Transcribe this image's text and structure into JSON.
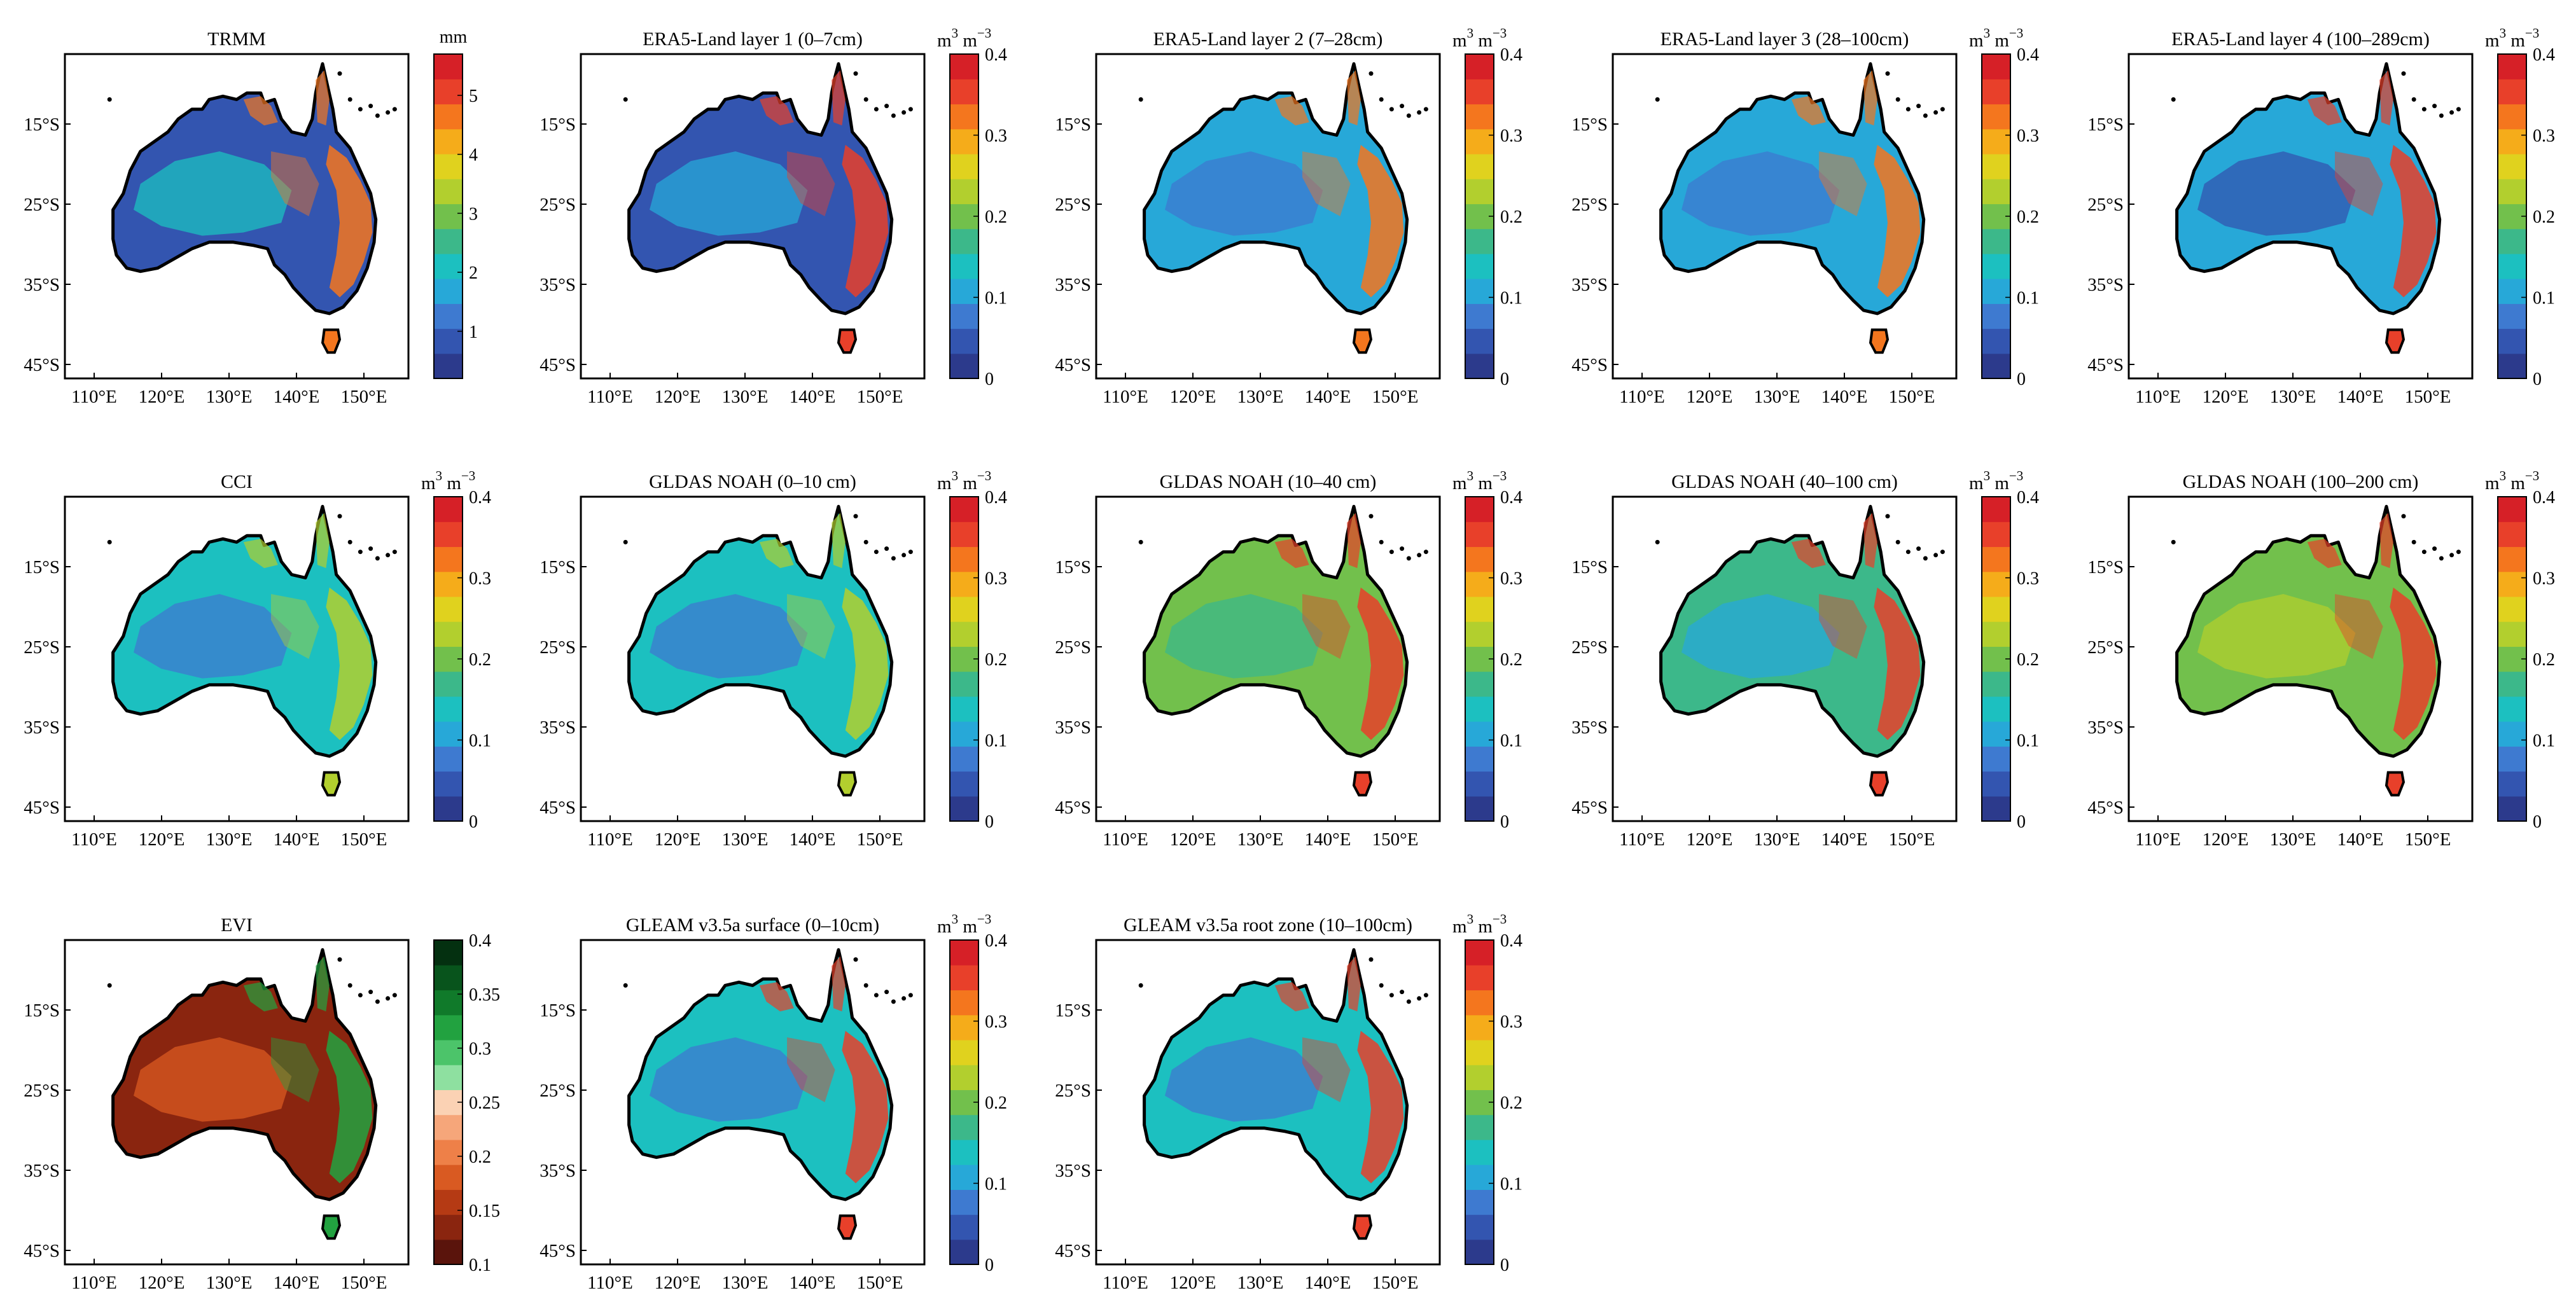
{
  "figure": {
    "x_ticks": [
      "110°E",
      "120°E",
      "130°E",
      "140°E",
      "150°E"
    ],
    "y_ticks": [
      "15°S",
      "25°S",
      "35°S",
      "45°S"
    ],
    "colorscales": {
      "rainfall": {
        "unit": "mm",
        "tick_labels": [
          "1",
          "2",
          "3",
          "4",
          "5"
        ],
        "colors": [
          "#2c3a8c",
          "#3355b0",
          "#3e7ad0",
          "#27a8d8",
          "#1cc0c0",
          "#3cb88a",
          "#72c04c",
          "#b2cf2e",
          "#e0d21e",
          "#f5ac1a",
          "#f4761e",
          "#e8402a",
          "#d62027"
        ]
      },
      "soil_moisture": {
        "unit_base": "m",
        "unit_exp1": "3",
        "unit_mid": " m",
        "unit_exp2": "−3",
        "tick_labels": [
          "0",
          "0.1",
          "0.2",
          "0.3",
          "0.4"
        ],
        "colors": [
          "#2c3a8c",
          "#3355b0",
          "#3e7ad0",
          "#27a8d8",
          "#1cc0c0",
          "#3cb88a",
          "#72c04c",
          "#b2cf2e",
          "#e0d21e",
          "#f5ac1a",
          "#f4761e",
          "#e8402a",
          "#d62027"
        ]
      },
      "vegetation": {
        "tick_labels": [
          "0.1",
          "0.15",
          "0.2",
          "0.25",
          "0.3",
          "0.35",
          "0.4"
        ],
        "colors": [
          "#5a140c",
          "#8a250f",
          "#b53a14",
          "#d95a22",
          "#ee8048",
          "#f6a67a",
          "#fbd2b4",
          "#8ee0a0",
          "#4cc46a",
          "#22a240",
          "#107a2a",
          "#08541c",
          "#043010"
        ]
      }
    },
    "panels": [
      {
        "title": "TRMM",
        "scale": "rainfall",
        "land": "#3355b0",
        "accent": "#1cc0c0",
        "hot": "#f4761e"
      },
      {
        "title": "ERA5-Land layer 1 (0–7cm)",
        "scale": "soil_moisture",
        "land": "#3355b0",
        "accent": "#27a8d8",
        "hot": "#e8402a"
      },
      {
        "title": "ERA5-Land layer 2 (7–28cm)",
        "scale": "soil_moisture",
        "land": "#27a8d8",
        "accent": "#3e7ad0",
        "hot": "#f4761e"
      },
      {
        "title": "ERA5-Land layer 3 (28–100cm)",
        "scale": "soil_moisture",
        "land": "#27a8d8",
        "accent": "#3e7ad0",
        "hot": "#f4761e"
      },
      {
        "title": "ERA5-Land layer 4 (100–289cm)",
        "scale": "soil_moisture",
        "land": "#27a8d8",
        "accent": "#3355b0",
        "hot": "#e8402a"
      },
      {
        "title": "CCI",
        "scale": "soil_moisture",
        "land": "#1cc0c0",
        "accent": "#3e7ad0",
        "hot": "#b2cf2e"
      },
      {
        "title": "GLDAS NOAH (0–10 cm)",
        "scale": "soil_moisture",
        "land": "#1cc0c0",
        "accent": "#3e7ad0",
        "hot": "#b2cf2e"
      },
      {
        "title": "GLDAS NOAH (10–40 cm)",
        "scale": "soil_moisture",
        "land": "#72c04c",
        "accent": "#3cb88a",
        "hot": "#e8402a"
      },
      {
        "title": "GLDAS NOAH (40–100 cm)",
        "scale": "soil_moisture",
        "land": "#3cb88a",
        "accent": "#27a8d8",
        "hot": "#e8402a"
      },
      {
        "title": "GLDAS NOAH (100–200 cm)",
        "scale": "soil_moisture",
        "land": "#72c04c",
        "accent": "#b2cf2e",
        "hot": "#e8402a"
      },
      {
        "title": "EVI",
        "scale": "vegetation",
        "land": "#8a250f",
        "accent": "#d95a22",
        "hot": "#22a240"
      },
      {
        "title": "GLEAM v3.5a surface (0–10cm)",
        "scale": "soil_moisture",
        "land": "#1cc0c0",
        "accent": "#3e7ad0",
        "hot": "#e8402a"
      },
      {
        "title": "GLEAM v3.5a root zone (10–100cm)",
        "scale": "soil_moisture",
        "land": "#1cc0c0",
        "accent": "#3e7ad0",
        "hot": "#e8402a"
      }
    ]
  }
}
